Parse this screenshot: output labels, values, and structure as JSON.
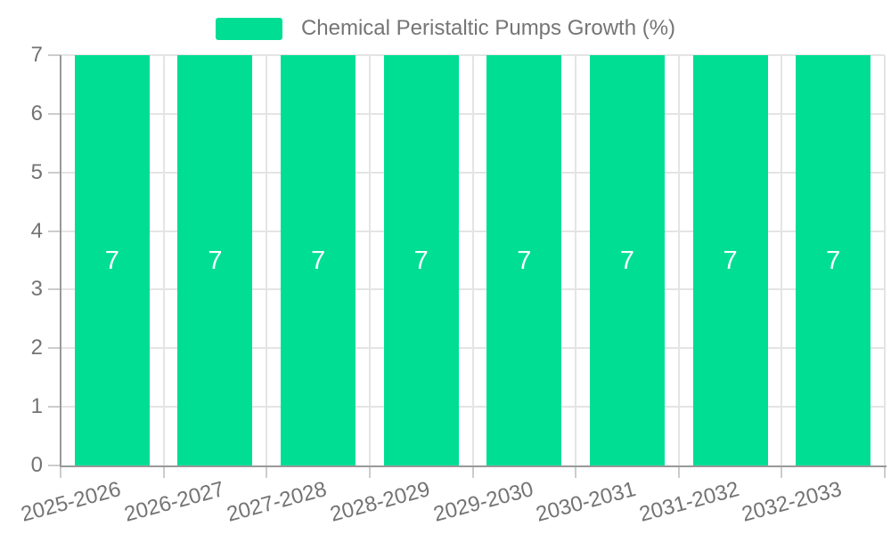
{
  "chart_data": {
    "type": "bar",
    "title": "Chemical Peristaltic Pumps Growth (%)",
    "legend": {
      "label": "Chemical Peristaltic Pumps Growth (%)",
      "position": "top-center"
    },
    "categories": [
      "2025-2026",
      "2026-2027",
      "2027-2028",
      "2028-2029",
      "2029-2030",
      "2030-2031",
      "2031-2032",
      "2032-2033"
    ],
    "series": [
      {
        "name": "Chemical Peristaltic Pumps Growth (%)",
        "values": [
          7,
          7,
          7,
          7,
          7,
          7,
          7,
          7
        ],
        "bar_labels": [
          "7",
          "7",
          "7",
          "7",
          "7",
          "7",
          "7",
          "7"
        ]
      }
    ],
    "xlabel": "",
    "ylabel": "",
    "ylim": [
      0,
      7
    ],
    "yticks": [
      0,
      1,
      2,
      3,
      4,
      5,
      6,
      7
    ],
    "grid": true,
    "x_label_rotation_deg": -15,
    "bar_label_position": "inside-center",
    "colors": {
      "bar": "#00de94",
      "bar_label": "#ffffff",
      "axis_line": "#999999",
      "tick": "#cccccc",
      "gridline": "#e4e4e4",
      "axis_text": "#737373",
      "legend_text": "#757575",
      "background": "#ffffff"
    }
  }
}
